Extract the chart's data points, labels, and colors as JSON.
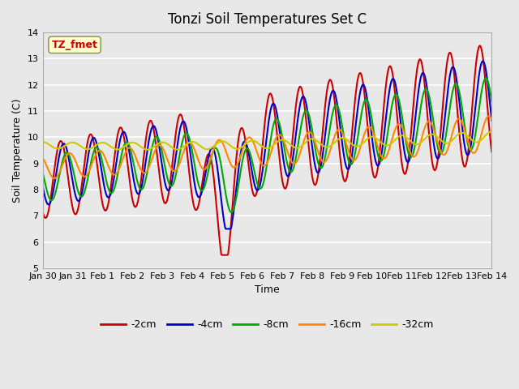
{
  "title": "Tonzi Soil Temperatures Set C",
  "xlabel": "Time",
  "ylabel": "Soil Temperature (C)",
  "ylim": [
    5.0,
    14.0
  ],
  "yticks": [
    5.0,
    6.0,
    7.0,
    8.0,
    9.0,
    10.0,
    11.0,
    12.0,
    13.0,
    14.0
  ],
  "annotation_text": "TZ_fmet",
  "annotation_color": "#cc0000",
  "annotation_bg": "#ffffcc",
  "annotation_border": "#999966",
  "colors": {
    "-2cm": "#cc0000",
    "-4cm": "#0000cc",
    "-8cm": "#00aa00",
    "-16cm": "#ff8800",
    "-32cm": "#cccc00"
  },
  "line_width": 1.5,
  "bg_color": "#e8e8e8",
  "plot_bg": "#e8e8e8",
  "grid_color": "#ffffff",
  "tick_dates": [
    "Jan 30",
    "Jan 31",
    "Feb 1",
    "Feb 2",
    "Feb 3",
    "Feb 4",
    "Feb 5",
    "Feb 6",
    "Feb 7",
    "Feb 8",
    "Feb 9",
    "Feb 10",
    "Feb 11",
    "Feb 12",
    "Feb 13",
    "Feb 14"
  ]
}
